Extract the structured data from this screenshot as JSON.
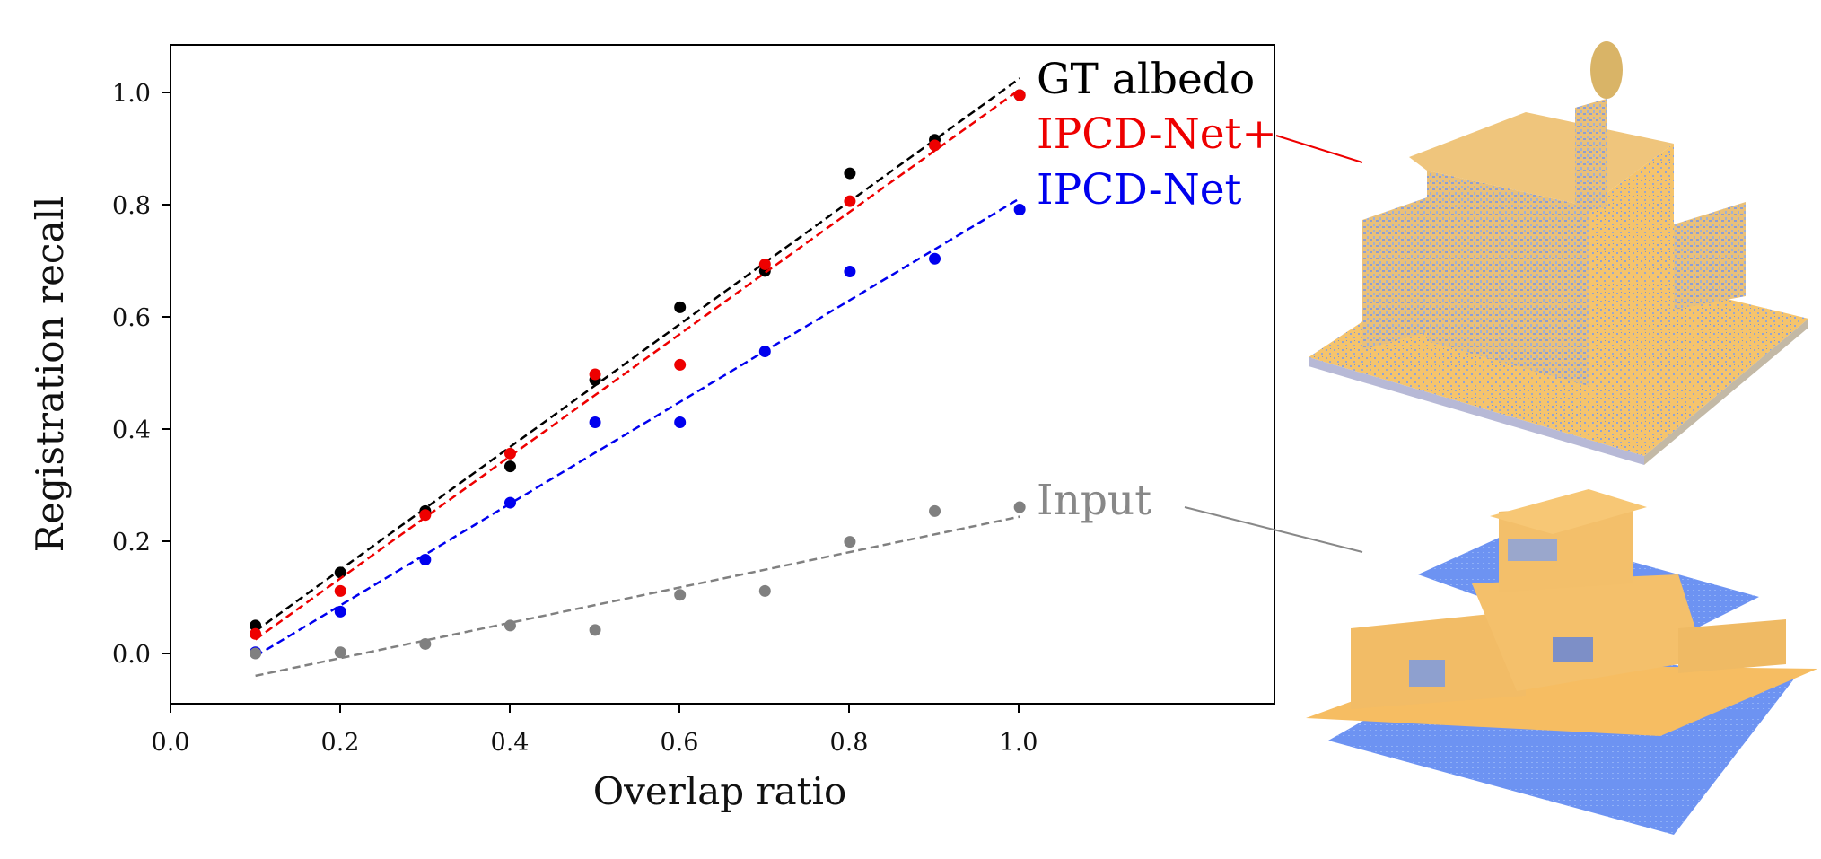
{
  "chart_data": {
    "type": "scatter",
    "xlabel": "Overlap ratio",
    "ylabel": "Registration recall",
    "xlim": [
      0.0,
      1.3
    ],
    "ylim": [
      -0.09,
      1.09
    ],
    "xticks": [
      "0.0",
      "0.2",
      "0.4",
      "0.6",
      "0.8",
      "1.0"
    ],
    "yticks": [
      "0.0",
      "0.2",
      "0.4",
      "0.6",
      "0.8",
      "1.0"
    ],
    "grid": false,
    "series": [
      {
        "name": "GT albedo",
        "color": "#000000",
        "x": [
          0.1,
          0.2,
          0.3,
          0.4,
          0.5,
          0.6,
          0.7,
          0.8,
          0.9,
          1.0
        ],
        "y": [
          0.05,
          0.145,
          0.255,
          0.335,
          0.49,
          0.62,
          0.685,
          0.86,
          0.92,
          1.0
        ],
        "trend": [
          [
            0.1,
            0.04
          ],
          [
            1.0,
            1.03
          ]
        ]
      },
      {
        "name": "IPCD-Net+",
        "color": "#ee0000",
        "x": [
          0.1,
          0.2,
          0.3,
          0.4,
          0.5,
          0.6,
          0.7,
          0.8,
          0.9,
          1.0
        ],
        "y": [
          0.035,
          0.112,
          0.248,
          0.358,
          0.5,
          0.517,
          0.697,
          0.81,
          0.91,
          1.0
        ],
        "trend": [
          [
            0.1,
            0.025
          ],
          [
            1.0,
            1.01
          ]
        ]
      },
      {
        "name": "IPCD-Net",
        "color": "#0000ee",
        "x": [
          0.1,
          0.2,
          0.3,
          0.4,
          0.5,
          0.6,
          0.7,
          0.8,
          0.9,
          1.0
        ],
        "y": [
          0.002,
          0.075,
          0.168,
          0.27,
          0.414,
          0.414,
          0.541,
          0.684,
          0.707,
          0.795
        ],
        "trend": [
          [
            0.1,
            -0.005
          ],
          [
            1.0,
            0.815
          ]
        ]
      },
      {
        "name": "Input",
        "color": "#808080",
        "x": [
          0.1,
          0.2,
          0.3,
          0.4,
          0.5,
          0.6,
          0.7,
          0.8,
          0.9,
          1.0
        ],
        "y": [
          0.0,
          0.002,
          0.017,
          0.05,
          0.042,
          0.105,
          0.112,
          0.2,
          0.255,
          0.262
        ],
        "trend": [
          [
            0.1,
            -0.04
          ],
          [
            1.0,
            0.245
          ]
        ]
      }
    ]
  },
  "images": [
    {
      "name": "ipcd-net-plus-render",
      "caption_series": "IPCD-Net+"
    },
    {
      "name": "input-render",
      "caption_series": "Input"
    }
  ]
}
